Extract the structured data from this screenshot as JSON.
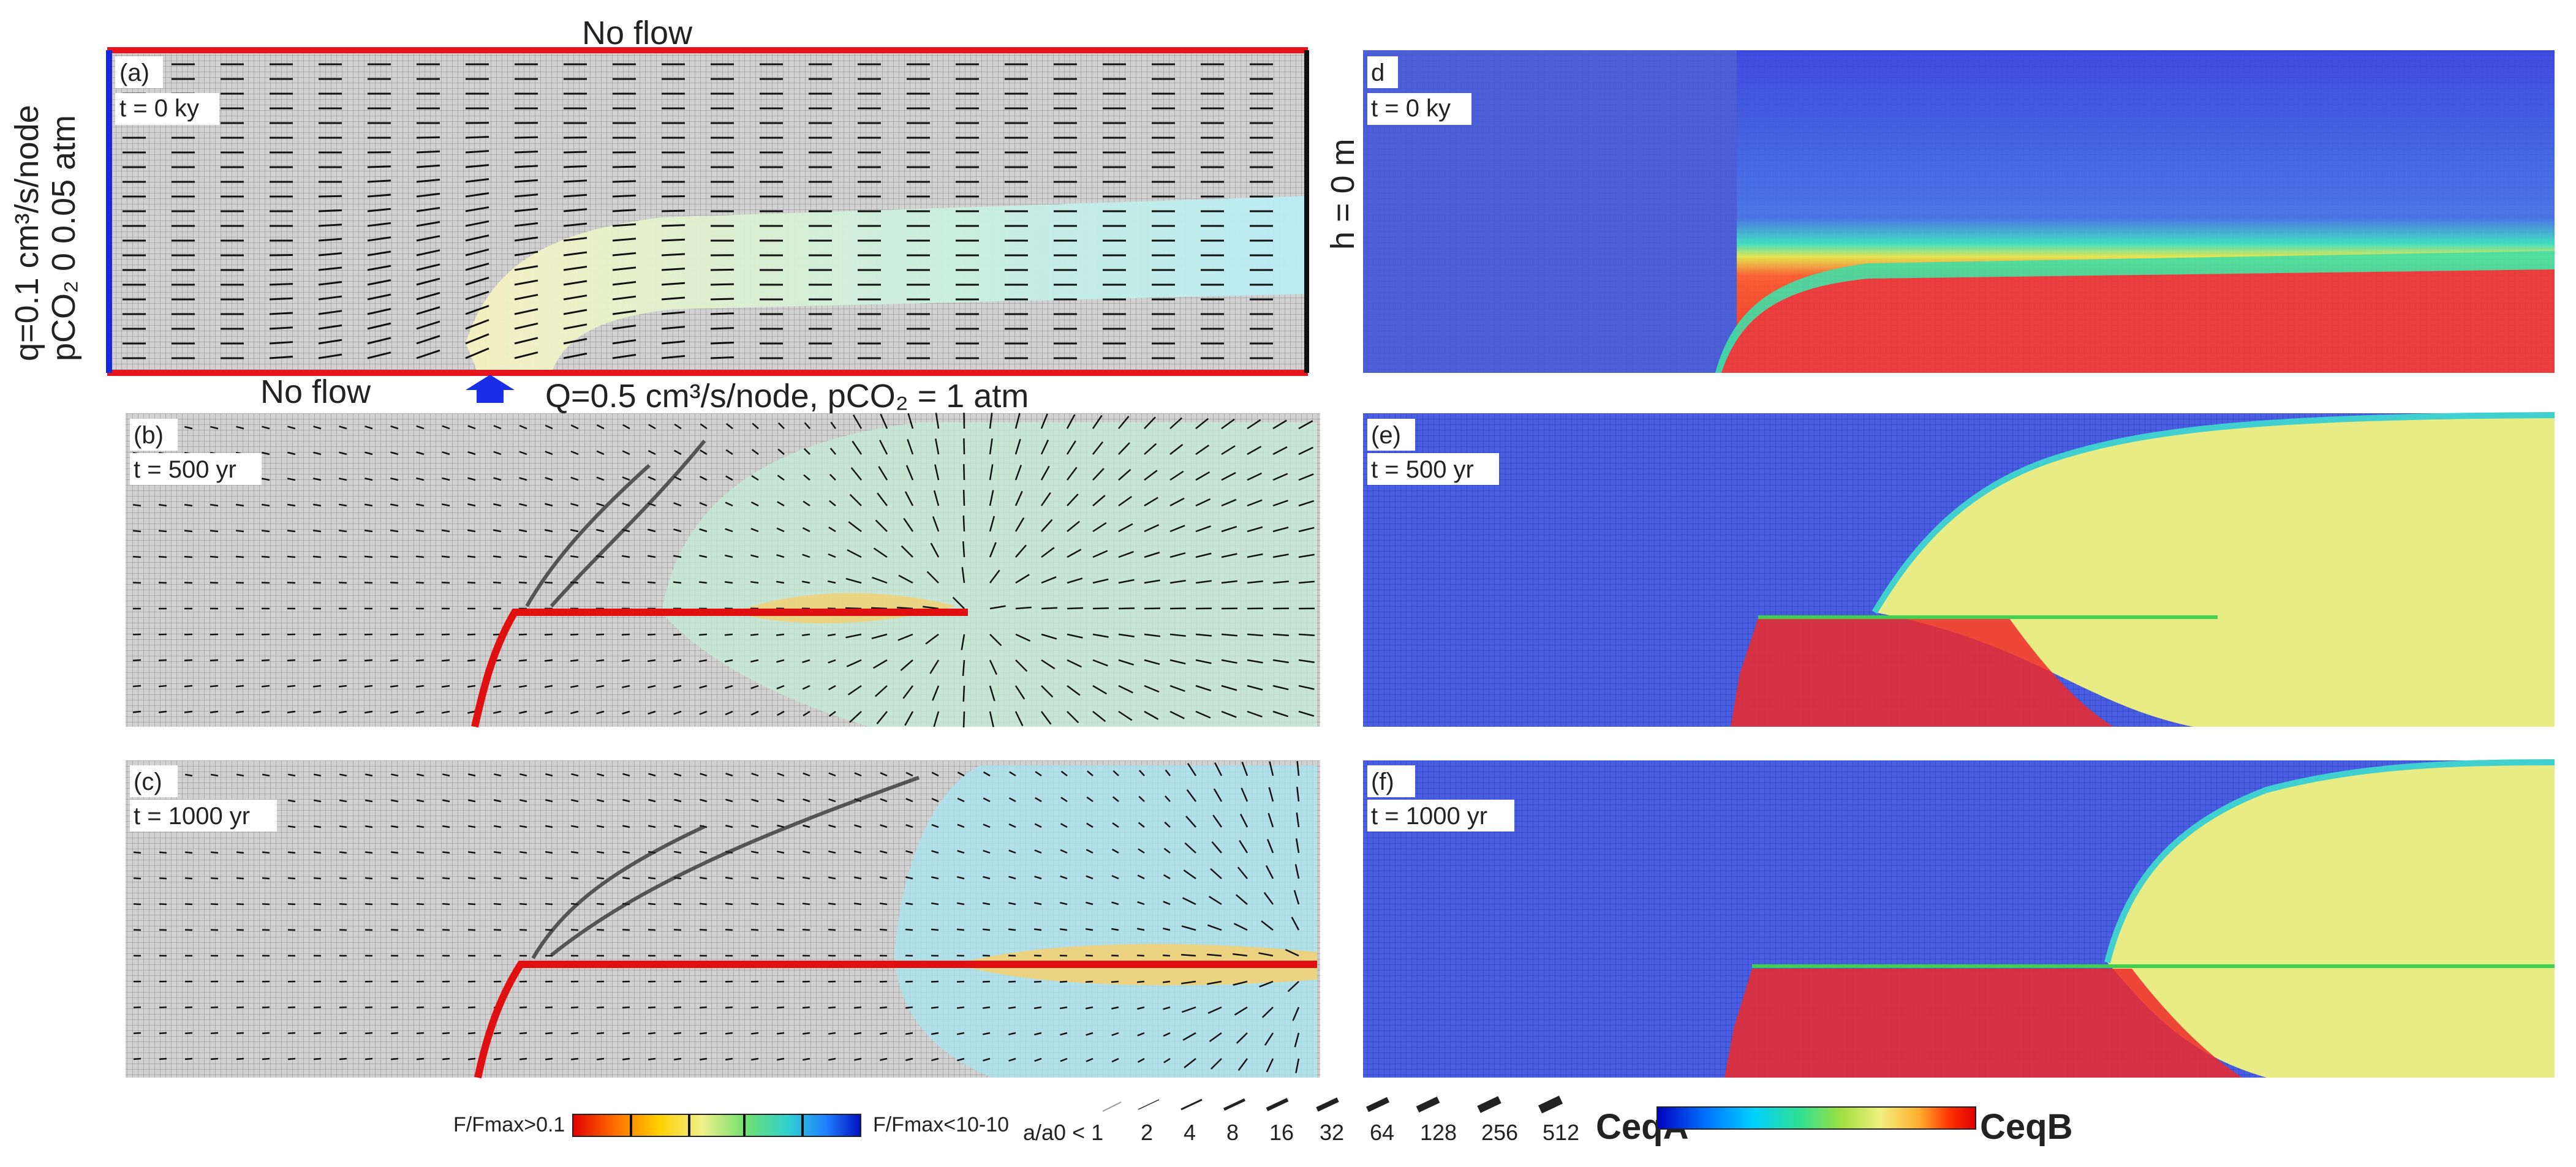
{
  "panel_a": {
    "label": "(a)",
    "time": "t = 0 ky",
    "top_boundary": "No flow",
    "bottom_boundary": "No flow",
    "left_bc_line1": "q=0.1 cm³/s/node",
    "left_bc_line2": "pCO₂ 0 0.05 atm",
    "right_bc": "h = 0 m",
    "inlet": "Q=0.5 cm³/s/node, pCO₂ = 1 atm"
  },
  "panel_b": {
    "label": "(b)",
    "time": "t = 500 yr"
  },
  "panel_c": {
    "label": "(c)",
    "time": "t = 1000 yr"
  },
  "panel_d": {
    "label": "d",
    "time": "t = 0 ky"
  },
  "panel_e": {
    "label": "(e)",
    "time": "t = 500 yr"
  },
  "panel_f": {
    "label": "(f)",
    "time": "t = 1000 yr"
  },
  "flux_legend": {
    "left": "F/Fmax>0.1",
    "right": "F/Fmax<10-10",
    "colors": [
      "#e00000",
      "#ff7000",
      "#ffd000",
      "#f0f08a",
      "#70e070",
      "#30d0d0",
      "#2080ff",
      "#0010c0"
    ]
  },
  "aperture_legend": {
    "title": "a/a0 < 1",
    "ticks": [
      "2",
      "4",
      "8",
      "16",
      "32",
      "64",
      "128",
      "256",
      "512"
    ]
  },
  "conc_legend": {
    "left": "CeqA",
    "right": "CeqB",
    "colors": [
      "#0000c0",
      "#0070ff",
      "#00d0ff",
      "#30e090",
      "#a0e040",
      "#f0f080",
      "#ffb030",
      "#ff3000",
      "#e00000"
    ]
  },
  "colors": {
    "boundary_red": "#e8141b",
    "boundary_blue": "#1428e0",
    "inlet_arrow": "#1a2ee8",
    "grid_bg": "#c8c8c8",
    "field_blue": "#3a4fd8",
    "field_red": "#ee2a2a",
    "field_yellow": "#e9ec84"
  }
}
